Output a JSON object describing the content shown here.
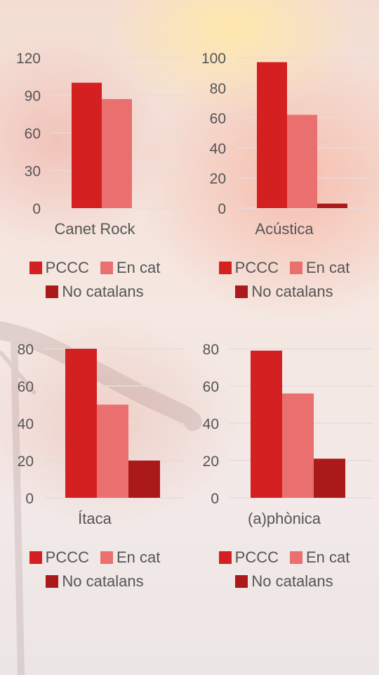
{
  "colors": {
    "pccc": "#d42020",
    "en_cat": "#ea7070",
    "no_catalans": "#aa1a1a",
    "axis_text": "#555555",
    "grid": "#e6dcdc"
  },
  "legend_labels": [
    "PCCC",
    "En cat",
    "No catalans"
  ],
  "chart_data": [
    {
      "type": "bar",
      "title": "Canet Rock",
      "categories": [
        "Canet Rock"
      ],
      "series": [
        {
          "name": "PCCC",
          "values": [
            100
          ]
        },
        {
          "name": "En cat",
          "values": [
            87
          ]
        },
        {
          "name": "No catalans",
          "values": [
            0
          ]
        }
      ],
      "yticks": [
        0,
        30,
        60,
        90,
        120
      ],
      "ylim": [
        0,
        120
      ],
      "grid": true,
      "legend_position": "bottom"
    },
    {
      "type": "bar",
      "title": "Acústica",
      "categories": [
        "Acústica"
      ],
      "series": [
        {
          "name": "PCCC",
          "values": [
            97
          ]
        },
        {
          "name": "En cat",
          "values": [
            62
          ]
        },
        {
          "name": "No catalans",
          "values": [
            3
          ]
        }
      ],
      "yticks": [
        0,
        20,
        40,
        60,
        80,
        100
      ],
      "ylim": [
        0,
        100
      ],
      "grid": true,
      "legend_position": "bottom"
    },
    {
      "type": "bar",
      "title": "Ítaca",
      "categories": [
        "Ítaca"
      ],
      "series": [
        {
          "name": "PCCC",
          "values": [
            80
          ]
        },
        {
          "name": "En cat",
          "values": [
            50
          ]
        },
        {
          "name": "No catalans",
          "values": [
            20
          ]
        }
      ],
      "yticks": [
        0,
        20,
        40,
        60,
        80
      ],
      "ylim": [
        0,
        80
      ],
      "grid": true,
      "legend_position": "bottom"
    },
    {
      "type": "bar",
      "title": "(a)phònica",
      "categories": [
        "(a)phònica"
      ],
      "series": [
        {
          "name": "PCCC",
          "values": [
            79
          ]
        },
        {
          "name": "En cat",
          "values": [
            56
          ]
        },
        {
          "name": "No catalans",
          "values": [
            21
          ]
        }
      ],
      "yticks": [
        0,
        20,
        40,
        60,
        80
      ],
      "ylim": [
        0,
        80
      ],
      "grid": true,
      "legend_position": "bottom"
    }
  ]
}
